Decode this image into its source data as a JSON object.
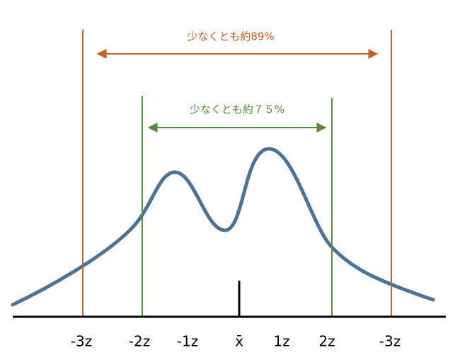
{
  "annotations": [
    {
      "label": "少なくとも約89%"
    },
    {
      "label": "少なくとも約７５%"
    }
  ],
  "axis_labels": [
    "-3z",
    "-2z",
    "-1z",
    "x̄",
    "1z",
    "2z",
    "-3z"
  ]
}
